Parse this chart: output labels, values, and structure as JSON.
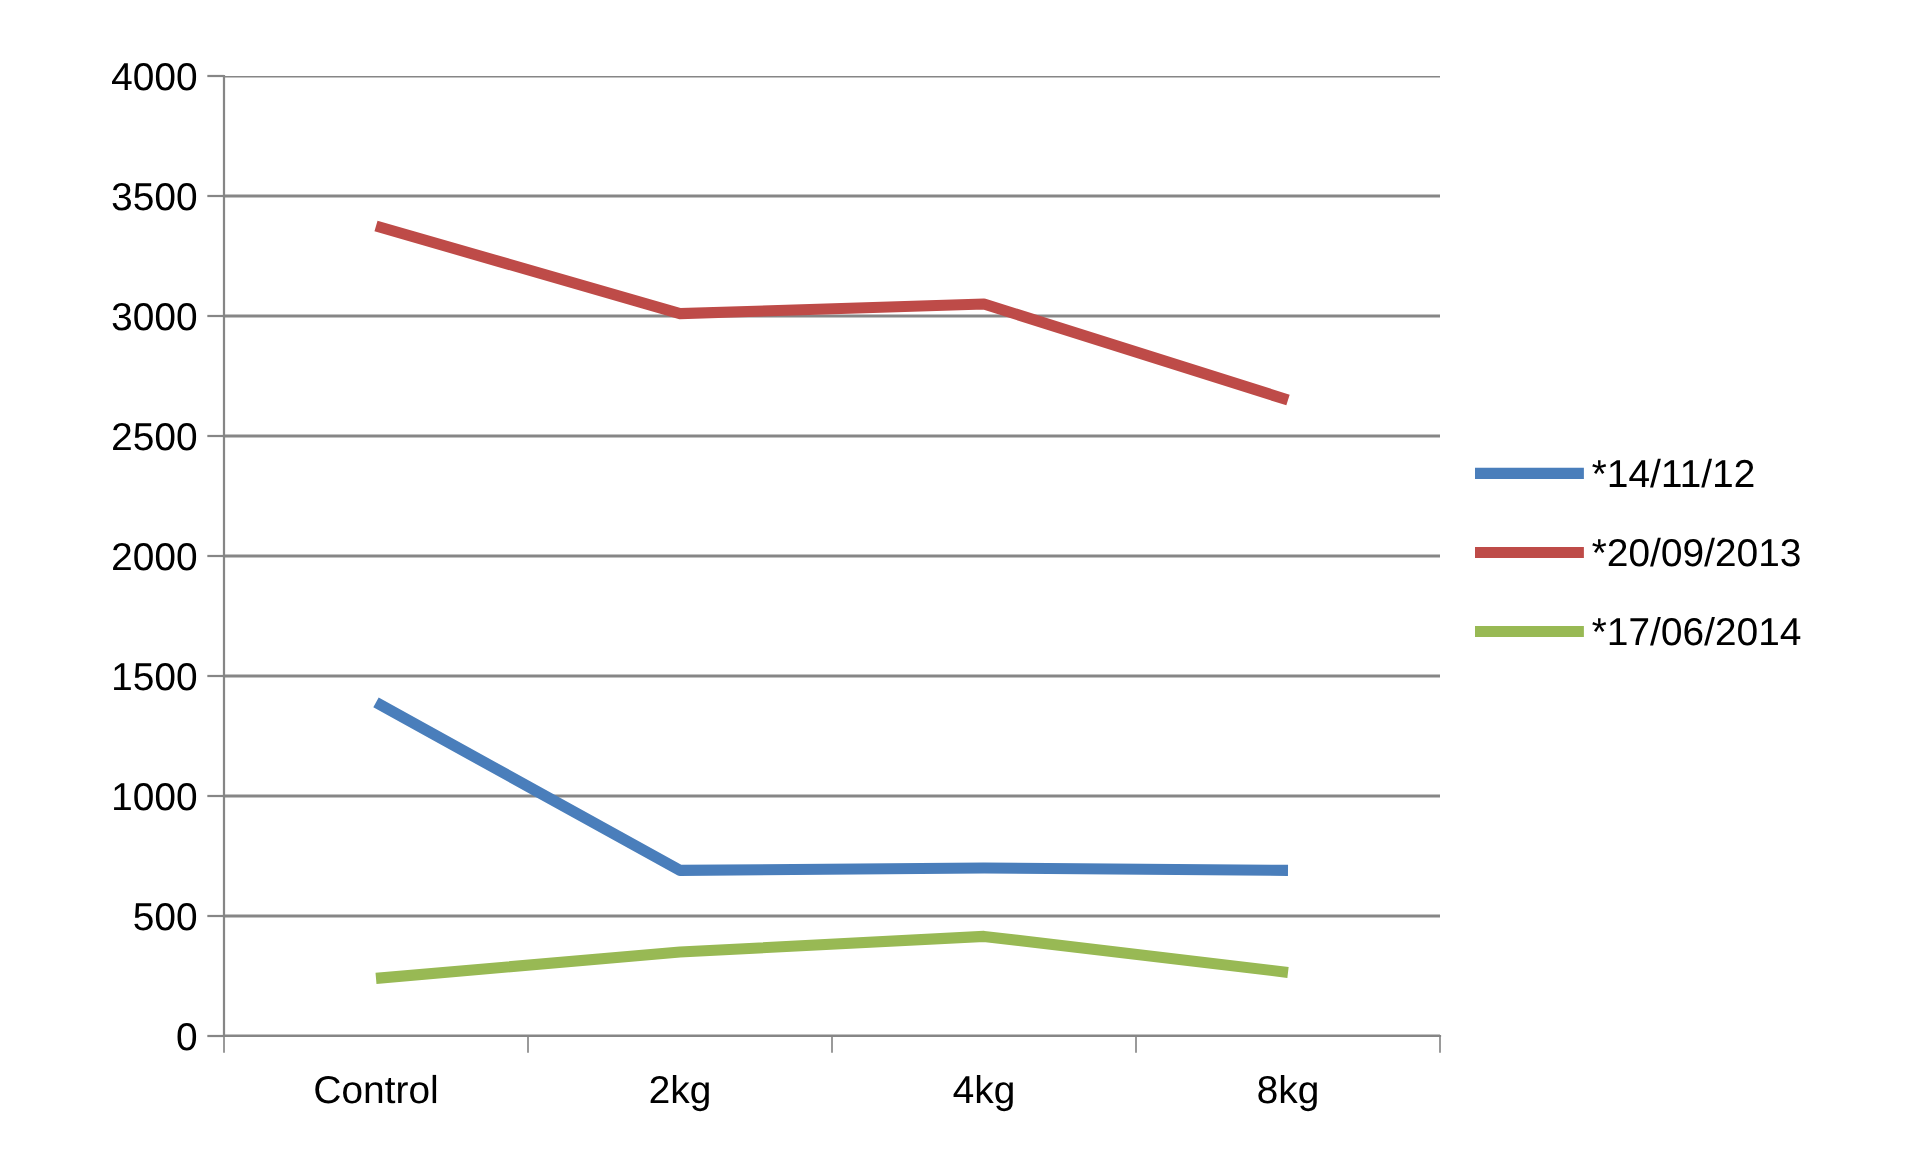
{
  "chart_data": {
    "type": "line",
    "categories": [
      "Control",
      "2kg",
      "4kg",
      "8kg"
    ],
    "series": [
      {
        "name": "*14/11/12",
        "color": "#4a7ebb",
        "values": [
          1390,
          690,
          700,
          690
        ]
      },
      {
        "name": "*20/09/2013",
        "color": "#be4b48",
        "values": [
          3375,
          3010,
          3050,
          2650
        ]
      },
      {
        "name": "*17/06/2014",
        "color": "#98b954",
        "values": [
          240,
          350,
          415,
          265
        ]
      }
    ],
    "ylim": [
      0,
      4000
    ],
    "yticks": [
      0,
      500,
      1000,
      1500,
      2000,
      2500,
      3000,
      3500,
      4000
    ],
    "grid": "y",
    "legend": "right",
    "marker": "none",
    "line_style": "solid"
  }
}
